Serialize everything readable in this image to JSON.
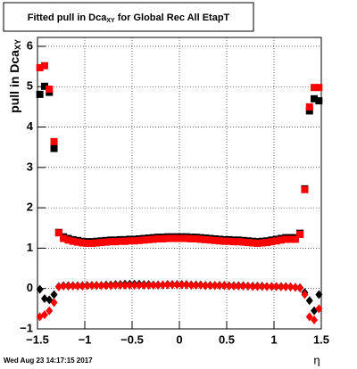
{
  "chart_data": {
    "type": "scatter",
    "title": {
      "text": "Fitted pull in Dca",
      "subscript": "XY",
      "suffix": " for Global Rec All EtapT"
    },
    "ylabel": {
      "text": "pull in Dca",
      "subscript": "XY"
    },
    "xlabel": "η",
    "footer": "Wed Aug 23 14:17:15 2017",
    "xlim": [
      -1.5,
      1.5
    ],
    "ylim": [
      -1,
      6.22
    ],
    "xticks": [
      {
        "value": -1.5,
        "label": "−1.5"
      },
      {
        "value": -1,
        "label": "−1"
      },
      {
        "value": -0.5,
        "label": "−0.5"
      },
      0,
      0.5,
      1,
      1.5
    ],
    "yticks": [
      {
        "value": -1,
        "label": "−1"
      },
      0,
      1,
      2,
      3,
      4,
      5,
      6
    ],
    "grid": true,
    "x": [
      -1.475,
      -1.425,
      -1.375,
      -1.325,
      -1.275,
      -1.225,
      -1.175,
      -1.125,
      -1.075,
      -1.025,
      -0.975,
      -0.925,
      -0.875,
      -0.825,
      -0.775,
      -0.725,
      -0.675,
      -0.625,
      -0.575,
      -0.525,
      -0.475,
      -0.425,
      -0.375,
      -0.325,
      -0.275,
      -0.225,
      -0.175,
      -0.125,
      -0.075,
      -0.025,
      0.025,
      0.075,
      0.125,
      0.175,
      0.225,
      0.275,
      0.325,
      0.375,
      0.425,
      0.475,
      0.525,
      0.575,
      0.625,
      0.675,
      0.725,
      0.775,
      0.825,
      0.875,
      0.925,
      0.975,
      1.025,
      1.075,
      1.125,
      1.175,
      1.225,
      1.275,
      1.325,
      1.375,
      1.425,
      1.475
    ],
    "series": [
      {
        "color": "#000000",
        "marker": "square",
        "values": [
          4.81,
          5.01,
          4.86,
          3.47,
          1.39,
          1.28,
          1.24,
          1.21,
          1.19,
          1.17,
          1.16,
          1.16,
          1.17,
          1.18,
          1.19,
          1.2,
          1.2,
          1.21,
          1.21,
          1.22,
          1.22,
          1.23,
          1.24,
          1.25,
          1.26,
          1.27,
          1.27,
          1.28,
          1.28,
          1.28,
          1.28,
          1.28,
          1.27,
          1.27,
          1.26,
          1.25,
          1.24,
          1.23,
          1.22,
          1.21,
          1.21,
          1.2,
          1.2,
          1.19,
          1.18,
          1.17,
          1.16,
          1.17,
          1.18,
          1.2,
          1.22,
          1.24,
          1.26,
          1.26,
          1.26,
          1.37,
          2.47,
          4.4,
          4.7,
          4.65
        ]
      },
      {
        "color": "#ff0000",
        "marker": "square",
        "values": [
          5.47,
          5.52,
          4.94,
          3.64,
          1.38,
          1.24,
          1.2,
          1.17,
          1.15,
          1.13,
          1.12,
          1.12,
          1.13,
          1.14,
          1.15,
          1.16,
          1.16,
          1.17,
          1.17,
          1.18,
          1.18,
          1.19,
          1.2,
          1.21,
          1.22,
          1.23,
          1.23,
          1.24,
          1.24,
          1.24,
          1.24,
          1.24,
          1.23,
          1.23,
          1.22,
          1.21,
          1.2,
          1.19,
          1.18,
          1.17,
          1.17,
          1.16,
          1.16,
          1.15,
          1.14,
          1.13,
          1.12,
          1.13,
          1.14,
          1.16,
          1.18,
          1.2,
          1.22,
          1.22,
          1.22,
          1.34,
          2.45,
          4.5,
          4.98,
          4.98
        ]
      },
      {
        "color": "#000000",
        "marker": "diamond",
        "values": [
          -0.02,
          -0.25,
          -0.28,
          -0.15,
          0.05,
          0.07,
          0.07,
          0.07,
          0.07,
          0.07,
          0.08,
          0.08,
          0.08,
          0.08,
          0.09,
          0.09,
          0.1,
          0.1,
          0.11,
          0.11,
          0.11,
          0.11,
          0.1,
          0.1,
          0.09,
          0.09,
          0.09,
          0.1,
          0.1,
          0.1,
          0.1,
          0.1,
          0.09,
          0.09,
          0.09,
          0.08,
          0.08,
          0.08,
          0.08,
          0.08,
          0.07,
          0.07,
          0.07,
          0.07,
          0.06,
          0.06,
          0.06,
          0.06,
          0.05,
          0.05,
          0.05,
          0.05,
          0.05,
          0.04,
          0.03,
          0.02,
          -0.1,
          -0.3,
          -0.55,
          -0.15
        ]
      },
      {
        "color": "#ff0000",
        "marker": "diamond",
        "values": [
          -0.7,
          -0.65,
          -0.55,
          -0.35,
          0.04,
          0.06,
          0.06,
          0.06,
          0.06,
          0.06,
          0.07,
          0.07,
          0.07,
          0.07,
          0.07,
          0.07,
          0.08,
          0.08,
          0.08,
          0.08,
          0.08,
          0.08,
          0.08,
          0.08,
          0.08,
          0.08,
          0.09,
          0.09,
          0.09,
          0.09,
          0.09,
          0.09,
          0.08,
          0.08,
          0.08,
          0.07,
          0.07,
          0.07,
          0.07,
          0.07,
          0.06,
          0.06,
          0.06,
          0.06,
          0.06,
          0.05,
          0.05,
          0.05,
          0.05,
          0.05,
          0.05,
          0.04,
          0.04,
          0.04,
          0.03,
          0.01,
          -0.15,
          -0.7,
          -0.78,
          -0.5
        ]
      }
    ]
  }
}
